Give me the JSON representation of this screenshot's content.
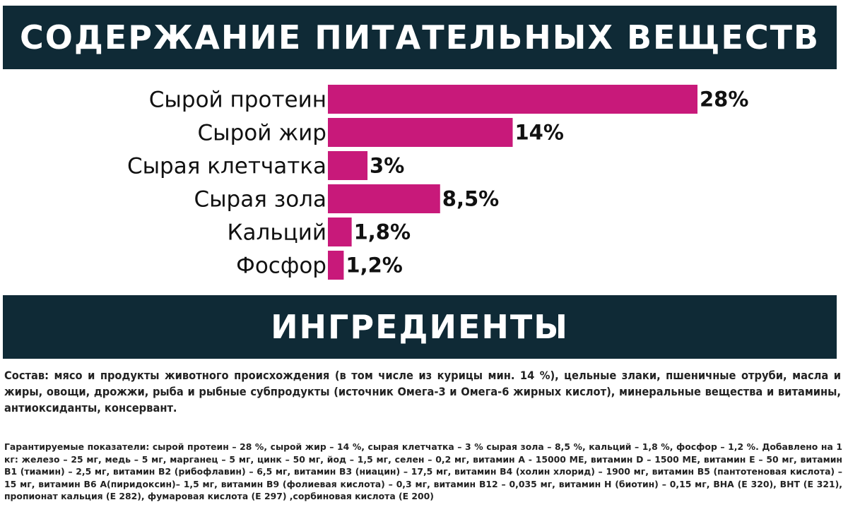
{
  "nutrients_header": {
    "title": "СОДЕРЖАНИЕ ПИТАТЕЛЬНЫХ ВЕЩЕСТВ"
  },
  "ingredients_header": {
    "title": "ИНГРЕДИЕНТЫ"
  },
  "colors": {
    "banner": "#0f2a36",
    "bar": "#c8197a",
    "text": "#111111"
  },
  "chart_data": {
    "type": "bar",
    "orientation": "horizontal",
    "categories": [
      "Сырой протеин",
      "Сырой жир",
      "Сырая клетчатка",
      "Сырая зола",
      "Кальций",
      "Фосфор"
    ],
    "values": [
      28,
      14,
      3,
      8.5,
      1.8,
      1.2
    ],
    "value_labels": [
      "28%",
      "14%",
      "3%",
      "8,5%",
      "1,8%",
      "1,2%"
    ],
    "xlim": [
      0,
      28
    ],
    "grid": false,
    "title": "",
    "xlabel": "",
    "ylabel": ""
  },
  "ingredients": {
    "composition": "Состав: мясо и продукты животного происхождения (в том числе из курицы мин. 14 %), цельные злаки, пшеничные отруби, масла и жиры, овощи, дрожжи, рыба и рыбные субпродукты (источник Омега-3 и Омега-6 жирных кислот), минеральные вещества и витамины, антиоксиданты, консервант.",
    "analysis": "Гарантируемые показатели: сырой протеин – 28 %, сырой жир – 14 %, сырая клетчатка – 3 % сырая зола – 8,5 %, кальций – 1,8 %, фосфор – 1,2 %. Добавлено на 1 кг: железо – 25 мг, медь – 5 мг, марганец – 5 мг, цинк – 50 мг, йод – 1,5 мг, селен – 0,2 мг, витамин А - 15000 МЕ, витамин D – 1500 МЕ, витамин Е – 50 мг, витамин В1 (тиамин) – 2,5 мг, витамин В2 (рибофлавин) – 6,5 мг, витамин В3 (ниацин) – 17,5 мг, витамин В4 (холин хлорид) – 1900 мг, витамин В5 (пантотеновая кислота) – 15 мг, витамин В6 А(пиридоксин)– 1,5 мг, витамин В9 (фолиевая кислота) – 0,3 мг, витамин В12 – 0,035 мг, витамин Н (биотин) – 0,15 мг, ВНА (Е 320), ВНТ (Е 321), пропионат кальция (Е 282), фумаровая кислота (Е 297) ,сорбиновая кислота (Е 200)"
  }
}
